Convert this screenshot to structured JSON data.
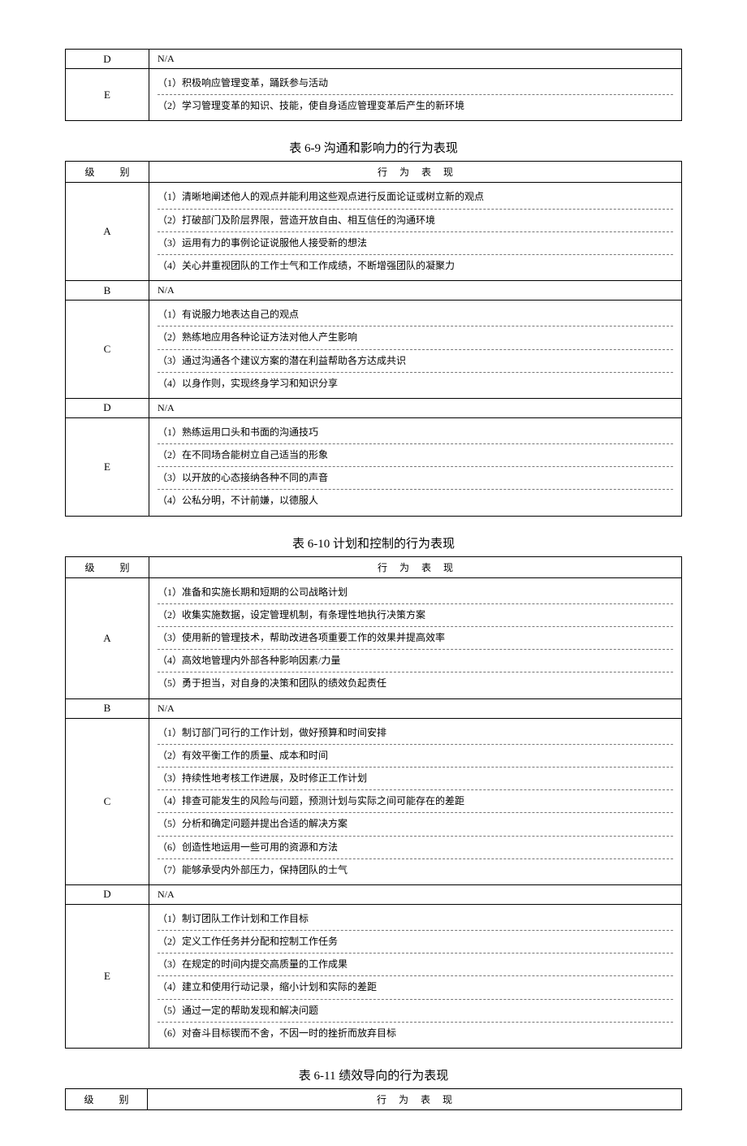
{
  "partial_table": {
    "rows": [
      {
        "level": "D",
        "na": true,
        "na_text": "N/A"
      },
      {
        "level": "E",
        "items": [
          "（1）积极响应管理变革，踊跃参与活动",
          "（2）学习管理变革的知识、技能，使自身适应管理变革后产生的新环境"
        ]
      }
    ]
  },
  "table_6_9": {
    "caption": "表 6-9   沟通和影响力的行为表现",
    "header": {
      "level": "级   别",
      "behav": "行 为 表 现"
    },
    "rows": [
      {
        "level": "A",
        "items": [
          "（1）清晰地阐述他人的观点并能利用这些观点进行反面论证或树立新的观点",
          "（2）打破部门及阶层界限，营造开放自由、相互信任的沟通环境",
          "（3）运用有力的事例论证说服他人接受新的想法",
          "（4）关心并重视团队的工作士气和工作成绩，不断增强团队的凝聚力"
        ]
      },
      {
        "level": "B",
        "na": true,
        "na_text": "N/A"
      },
      {
        "level": "C",
        "items": [
          "（1）有说服力地表达自己的观点",
          "（2）熟练地应用各种论证方法对他人产生影响",
          "（3）通过沟通各个建议方案的潜在利益帮助各方达成共识",
          "（4）以身作则，实现终身学习和知识分享"
        ]
      },
      {
        "level": "D",
        "na": true,
        "na_text": "N/A"
      },
      {
        "level": "E",
        "items": [
          "（1）熟练运用口头和书面的沟通技巧",
          "（2）在不同场合能树立自己适当的形象",
          "（3）以开放的心态接纳各种不同的声音",
          "（4）公私分明，不计前嫌，以德服人"
        ]
      }
    ]
  },
  "table_6_10": {
    "caption": "表 6-10   计划和控制的行为表现",
    "header": {
      "level": "级   别",
      "behav": "行 为 表 现"
    },
    "rows": [
      {
        "level": "A",
        "items": [
          "（1）准备和实施长期和短期的公司战略计划",
          "（2）收集实施数据，设定管理机制，有条理性地执行决策方案",
          "（3）使用新的管理技术，帮助改进各项重要工作的效果并提高效率",
          "（4）高效地管理内外部各种影响因素/力量",
          "（5）勇于担当，对自身的决策和团队的绩效负起责任"
        ]
      },
      {
        "level": "B",
        "na": true,
        "na_text": "N/A"
      },
      {
        "level": "C",
        "items": [
          "（1）制订部门可行的工作计划，做好预算和时间安排",
          "（2）有效平衡工作的质量、成本和时间",
          "（3）持续性地考核工作进展，及时修正工作计划",
          "（4）排查可能发生的风险与问题，预测计划与实际之间可能存在的差距",
          "（5）分析和确定问题并提出合适的解决方案",
          "（6）创造性地运用一些可用的资源和方法",
          "（7）能够承受内外部压力，保持团队的士气"
        ]
      },
      {
        "level": "D",
        "na": true,
        "na_text": "N/A"
      },
      {
        "level": "E",
        "items": [
          "（1）制订团队工作计划和工作目标",
          "（2）定义工作任务并分配和控制工作任务",
          "（3）在规定的时间内提交高质量的工作成果",
          "（4）建立和使用行动记录，缩小计划和实际的差距",
          "（5）通过一定的帮助发现和解决问题",
          "（6）对奋斗目标锲而不舍，不因一时的挫折而放弃目标"
        ]
      }
    ]
  },
  "table_6_11": {
    "caption": "表 6-11 绩效导向的行为表现",
    "header": {
      "level": "级   别",
      "behav": "行 为 表 现"
    }
  }
}
